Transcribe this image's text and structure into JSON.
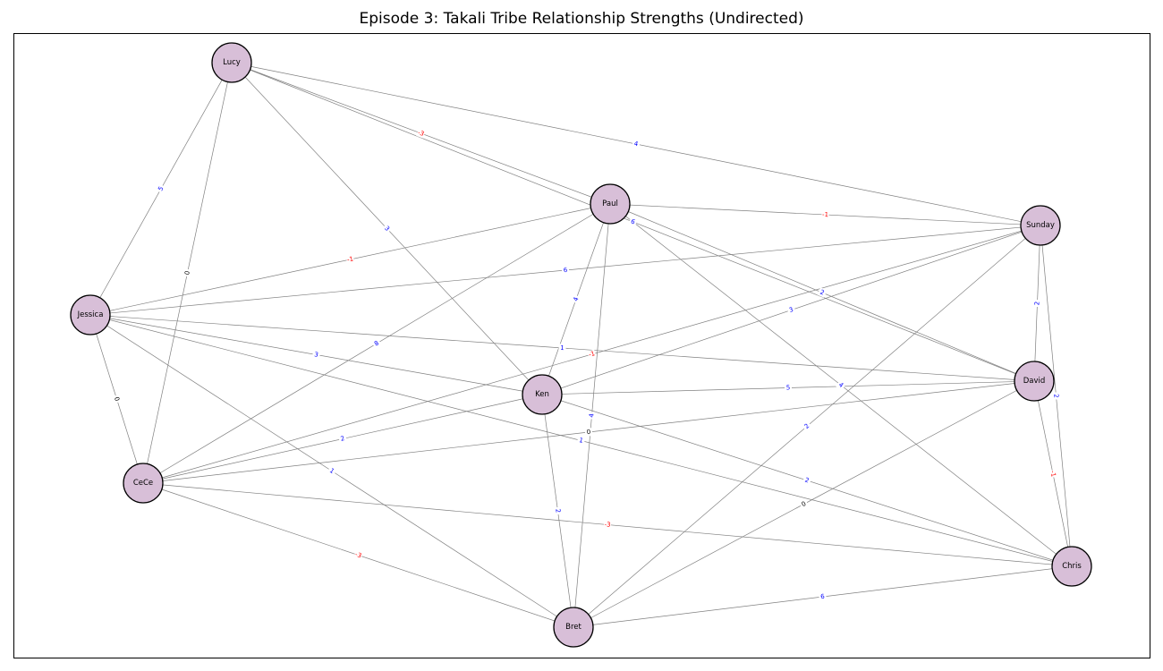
{
  "title": "Episode 3: Takali Tribe Relationship Strengths (Undirected)",
  "colors": {
    "node_fill": "#d8bfd8",
    "node_stroke": "#000000",
    "edge": "#808080",
    "positive_label": "#0000ff",
    "negative_label": "#ff0000",
    "zero_label": "#000000"
  },
  "nodes": [
    "Lucy",
    "Paul",
    "Sunday",
    "Jessica",
    "Ken",
    "David",
    "CeCe",
    "Chris",
    "Bret"
  ],
  "edges": [
    {
      "a": "Lucy",
      "b": "Paul",
      "w": -3
    },
    {
      "a": "Lucy",
      "b": "Sunday",
      "w": 4
    },
    {
      "a": "Lucy",
      "b": "Jessica",
      "w": 5
    },
    {
      "a": "Lucy",
      "b": "CeCe",
      "w": 0
    },
    {
      "a": "Lucy",
      "b": "Ken",
      "w": 3
    },
    {
      "a": "Lucy",
      "b": "David",
      "w": 6
    },
    {
      "a": "Paul",
      "b": "Sunday",
      "w": -1
    },
    {
      "a": "Paul",
      "b": "Jessica",
      "w": -1
    },
    {
      "a": "Paul",
      "b": "Ken",
      "w": 4
    },
    {
      "a": "Paul",
      "b": "CeCe",
      "w": 8
    },
    {
      "a": "Paul",
      "b": "Bret",
      "w": 4
    },
    {
      "a": "Paul",
      "b": "Chris",
      "w": 4
    },
    {
      "a": "Paul",
      "b": "David",
      "w": 2
    },
    {
      "a": "Sunday",
      "b": "Jessica",
      "w": 6
    },
    {
      "a": "Sunday",
      "b": "Ken",
      "w": 3
    },
    {
      "a": "Sunday",
      "b": "CeCe",
      "w": -1
    },
    {
      "a": "Sunday",
      "b": "David",
      "w": 2
    },
    {
      "a": "Sunday",
      "b": "Chris",
      "w": 2
    },
    {
      "a": "Sunday",
      "b": "Bret",
      "w": 2
    },
    {
      "a": "Jessica",
      "b": "Ken",
      "w": 3
    },
    {
      "a": "Jessica",
      "b": "David",
      "w": 1
    },
    {
      "a": "Jessica",
      "b": "CeCe",
      "w": 0
    },
    {
      "a": "Jessica",
      "b": "Bret",
      "w": 1
    },
    {
      "a": "Jessica",
      "b": "Chris",
      "w": 1
    },
    {
      "a": "Ken",
      "b": "David",
      "w": 5
    },
    {
      "a": "Ken",
      "b": "CeCe",
      "w": 2
    },
    {
      "a": "Ken",
      "b": "Bret",
      "w": 2
    },
    {
      "a": "Ken",
      "b": "Chris",
      "w": 2
    },
    {
      "a": "David",
      "b": "CeCe",
      "w": 0
    },
    {
      "a": "David",
      "b": "Chris",
      "w": -1
    },
    {
      "a": "David",
      "b": "Bret",
      "w": 0
    },
    {
      "a": "CeCe",
      "b": "Chris",
      "w": -3
    },
    {
      "a": "CeCe",
      "b": "Bret",
      "w": -3
    },
    {
      "a": "Chris",
      "b": "Bret",
      "w": 6
    }
  ]
}
